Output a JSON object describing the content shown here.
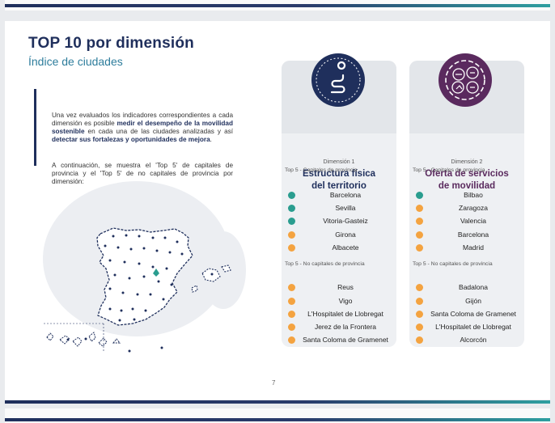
{
  "header": {
    "title": "TOP 10 por dimensión",
    "subtitle": "Índice de ciudades"
  },
  "intro": {
    "p1_pre": "Una vez evaluados los indicadores correspondientes a cada dimensión es posible ",
    "p1_bold1": "medir el desempeño de la movilidad sostenible",
    "p1_mid": " en cada una de las ciudades analizadas y así ",
    "p1_bold2": "detectar sus fortalezas y oportunidades de mejora",
    "p1_end": ".",
    "p2": "A continuación, se muestra el 'Top 5' de capitales de provincia y el 'Top 5' de no capitales de provincia por dimensión:"
  },
  "dimensions": [
    {
      "label": "Dimensión 1",
      "name_line1": "Estructura física",
      "name_line2": "del territorio",
      "icon": "road-route-icon",
      "color": "#1f2f5c",
      "capitals_label": "Top 5 - Capitales de provincia",
      "capitals": [
        {
          "city": "Barcelona",
          "color": "#2a9d8f"
        },
        {
          "city": "Sevilla",
          "color": "#2a9d8f"
        },
        {
          "city": "Vitoria-Gasteiz",
          "color": "#2a9d8f"
        },
        {
          "city": "Girona",
          "color": "#f4a340"
        },
        {
          "city": "Albacete",
          "color": "#f4a340"
        }
      ],
      "non_capitals_label": "Top 5 - No capitales de provincia",
      "non_capitals": [
        {
          "city": "Reus",
          "color": "#f4a340"
        },
        {
          "city": "Vigo",
          "color": "#f4a340"
        },
        {
          "city": "L'Hospitalet de Llobregat",
          "color": "#f4a340"
        },
        {
          "city": "Jerez de la Frontera",
          "color": "#f4a340"
        },
        {
          "city": "Santa Coloma de Gramenet",
          "color": "#f4a340"
        }
      ]
    },
    {
      "label": "Dimensión 2",
      "name_line1": "Oferta de servicios",
      "name_line2": "de movilidad",
      "icon": "mobility-services-icon",
      "color": "#5a2a5e",
      "capitals_label": "Top 5 - Capitales de provincia",
      "capitals": [
        {
          "city": "Bilbao",
          "color": "#2a9d8f"
        },
        {
          "city": "Zaragoza",
          "color": "#f4a340"
        },
        {
          "city": "Valencia",
          "color": "#f4a340"
        },
        {
          "city": "Barcelona",
          "color": "#f4a340"
        },
        {
          "city": "Madrid",
          "color": "#f4a340"
        }
      ],
      "non_capitals_label": "Top 5 - No capitales de provincia",
      "non_capitals": [
        {
          "city": "Badalona",
          "color": "#f4a340"
        },
        {
          "city": "Gijón",
          "color": "#f4a340"
        },
        {
          "city": "Santa Coloma de Gramenet",
          "color": "#f4a340"
        },
        {
          "city": "L'Hospitalet de Llobregat",
          "color": "#f4a340"
        },
        {
          "city": "Alcorcón",
          "color": "#f4a340"
        }
      ]
    }
  ],
  "footer": {
    "page_number": "7"
  },
  "colors": {
    "navy": "#1f2f5c",
    "teal": "#2a9d8f",
    "orange": "#f4a340",
    "purple": "#5a2a5e"
  }
}
